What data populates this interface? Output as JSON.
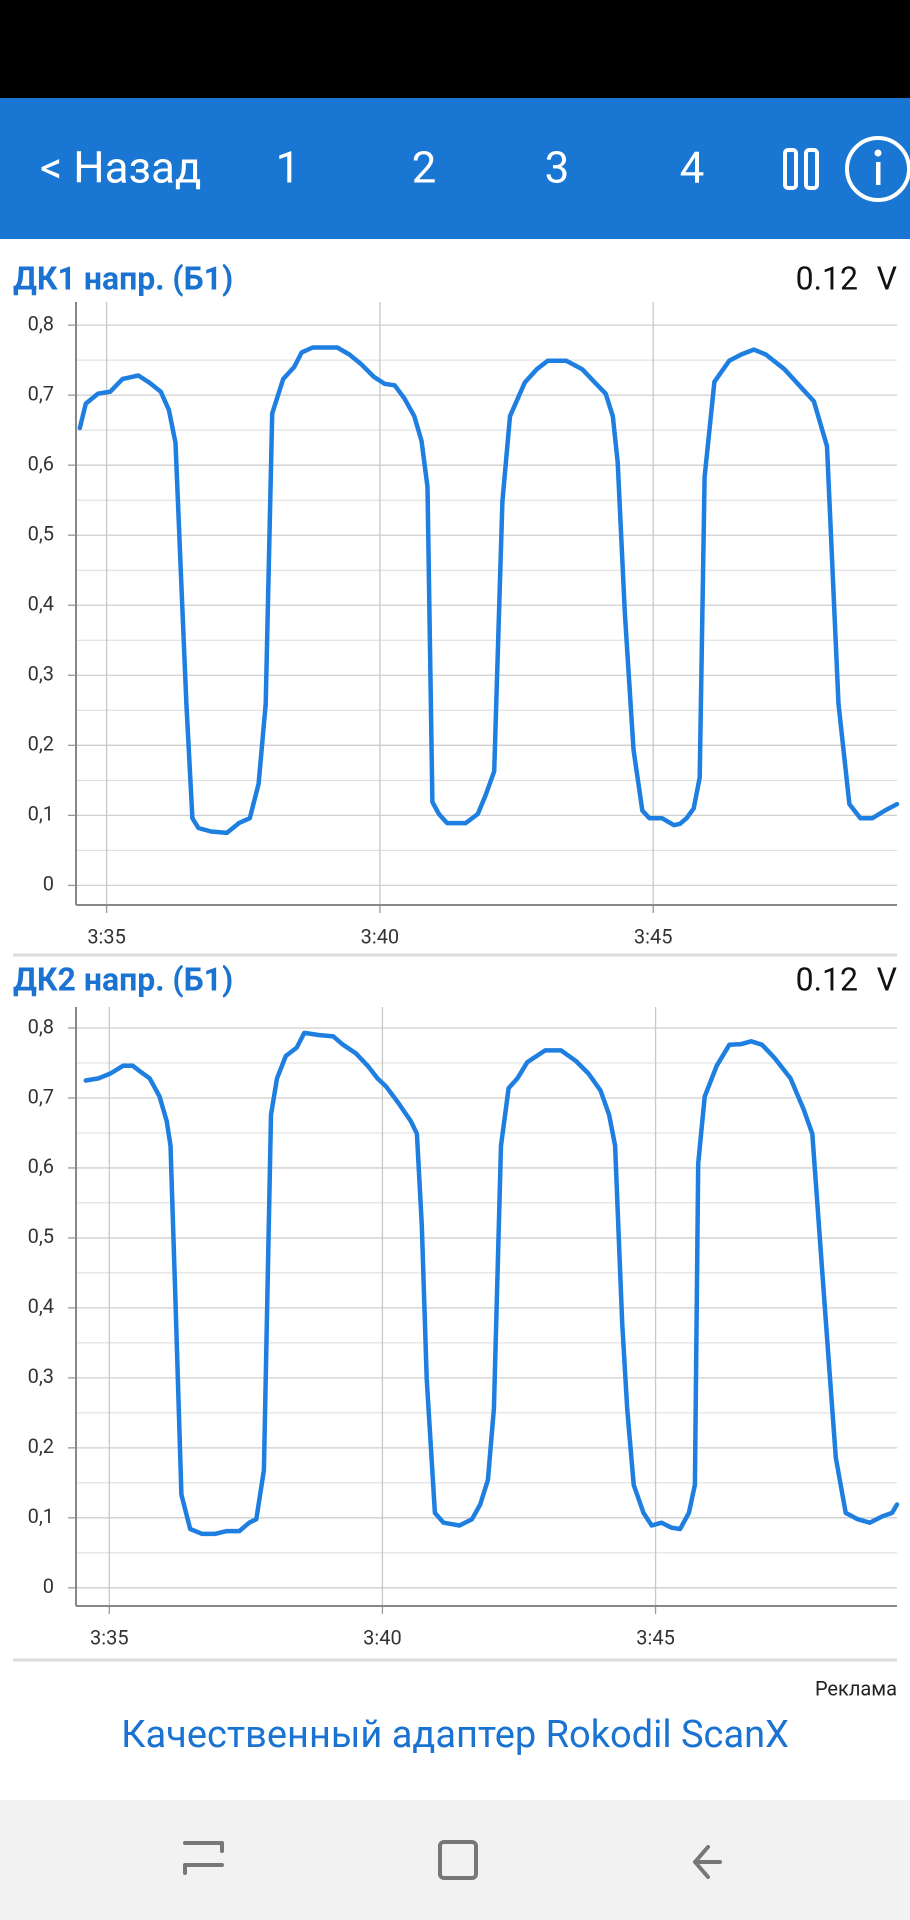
{
  "header": {
    "back": "< Назад",
    "tabs": [
      "1",
      "2",
      "3",
      "4"
    ]
  },
  "chart_data": [
    {
      "type": "line",
      "title": "ДК1 напр. (Б1)",
      "current_value": 0.12,
      "unit": "V",
      "color": "#1e7fe0",
      "grid": true,
      "xlim": [
        214.44,
        229.46
      ],
      "ylim": [
        -0.028,
        0.833
      ],
      "xticks": [
        {
          "value": 215,
          "label": "3:35"
        },
        {
          "value": 220,
          "label": "3:40"
        },
        {
          "value": 225,
          "label": "3:45"
        }
      ],
      "yticks": [
        0,
        {
          "value": 0.1,
          "label": "0,1"
        },
        {
          "value": 0.2,
          "label": "0,2"
        },
        {
          "value": 0.3,
          "label": "0,3"
        },
        {
          "value": 0.4,
          "label": "0,4"
        },
        {
          "value": 0.5,
          "label": "0,5"
        },
        {
          "value": 0.6,
          "label": "0,6"
        },
        {
          "value": 0.7,
          "label": "0,7"
        },
        {
          "value": 0.8,
          "label": "0,8"
        }
      ],
      "x": [
        214.51,
        214.62,
        214.84,
        215.07,
        215.29,
        215.58,
        215.78,
        215.99,
        216.14,
        216.26,
        216.37,
        216.46,
        216.57,
        216.68,
        216.91,
        217.2,
        217.42,
        217.62,
        217.78,
        217.91,
        218.03,
        218.23,
        218.43,
        218.57,
        218.77,
        219.22,
        219.44,
        219.66,
        219.89,
        220.09,
        220.27,
        220.45,
        220.63,
        220.76,
        220.87,
        220.96,
        221.08,
        221.23,
        221.57,
        221.79,
        221.93,
        222.09,
        222.24,
        222.38,
        222.65,
        222.87,
        223.07,
        223.41,
        223.7,
        223.92,
        224.13,
        224.26,
        224.35,
        224.48,
        224.64,
        224.8,
        224.93,
        225.16,
        225.38,
        225.49,
        225.61,
        225.74,
        225.85,
        225.94,
        226.12,
        226.39,
        226.61,
        226.84,
        227.06,
        227.4,
        227.67,
        227.94,
        228.18,
        228.39,
        228.59,
        228.79,
        229.01,
        229.24,
        229.46
      ],
      "values": [
        0.653,
        0.688,
        0.702,
        0.705,
        0.723,
        0.728,
        0.718,
        0.705,
        0.679,
        0.632,
        0.425,
        0.259,
        0.096,
        0.082,
        0.077,
        0.075,
        0.089,
        0.096,
        0.145,
        0.259,
        0.674,
        0.723,
        0.74,
        0.761,
        0.768,
        0.768,
        0.758,
        0.744,
        0.726,
        0.716,
        0.714,
        0.695,
        0.67,
        0.635,
        0.569,
        0.119,
        0.102,
        0.089,
        0.089,
        0.102,
        0.128,
        0.163,
        0.548,
        0.67,
        0.718,
        0.737,
        0.749,
        0.749,
        0.737,
        0.719,
        0.702,
        0.67,
        0.604,
        0.39,
        0.194,
        0.107,
        0.096,
        0.096,
        0.086,
        0.088,
        0.096,
        0.11,
        0.154,
        0.583,
        0.719,
        0.749,
        0.758,
        0.765,
        0.758,
        0.737,
        0.714,
        0.691,
        0.627,
        0.259,
        0.116,
        0.096,
        0.096,
        0.107,
        0.116
      ]
    },
    {
      "type": "line",
      "title": "ДК2 напр. (Б1)",
      "current_value": 0.12,
      "unit": "V",
      "color": "#1e7fe0",
      "grid": true,
      "xlim": [
        214.39,
        229.42
      ],
      "ylim": [
        -0.026,
        0.83
      ],
      "xticks": [
        {
          "value": 215,
          "label": "3:35"
        },
        {
          "value": 220,
          "label": "3:40"
        },
        {
          "value": 225,
          "label": "3:45"
        }
      ],
      "yticks": [
        0,
        {
          "value": 0.1,
          "label": "0,1"
        },
        {
          "value": 0.2,
          "label": "0,2"
        },
        {
          "value": 0.3,
          "label": "0,3"
        },
        {
          "value": 0.4,
          "label": "0,4"
        },
        {
          "value": 0.5,
          "label": "0,5"
        },
        {
          "value": 0.6,
          "label": "0,6"
        },
        {
          "value": 0.7,
          "label": "0,7"
        },
        {
          "value": 0.8,
          "label": "0,8"
        }
      ],
      "x": [
        214.57,
        214.8,
        215.02,
        215.25,
        215.43,
        215.58,
        215.74,
        215.92,
        216.05,
        216.12,
        216.21,
        216.32,
        216.48,
        216.7,
        216.93,
        217.15,
        217.38,
        217.56,
        217.69,
        217.83,
        217.96,
        218.07,
        218.23,
        218.43,
        218.57,
        218.83,
        219.1,
        219.28,
        219.51,
        219.73,
        219.91,
        220.07,
        220.29,
        220.52,
        220.63,
        220.72,
        220.81,
        220.96,
        221.12,
        221.41,
        221.64,
        221.79,
        221.93,
        222.04,
        222.17,
        222.31,
        222.47,
        222.65,
        222.98,
        223.27,
        223.54,
        223.77,
        223.99,
        224.15,
        224.26,
        224.39,
        224.48,
        224.6,
        224.78,
        224.93,
        225.11,
        225.29,
        225.45,
        225.61,
        225.72,
        225.78,
        225.9,
        226.12,
        226.35,
        226.57,
        226.75,
        226.95,
        227.17,
        227.47,
        227.71,
        227.87,
        228.07,
        228.3,
        228.48,
        228.7,
        228.92,
        229.15,
        229.33,
        229.42
      ],
      "values": [
        0.725,
        0.728,
        0.735,
        0.746,
        0.746,
        0.737,
        0.728,
        0.702,
        0.667,
        0.632,
        0.413,
        0.133,
        0.084,
        0.077,
        0.077,
        0.081,
        0.081,
        0.093,
        0.098,
        0.168,
        0.676,
        0.728,
        0.76,
        0.772,
        0.793,
        0.79,
        0.788,
        0.776,
        0.764,
        0.746,
        0.728,
        0.716,
        0.693,
        0.667,
        0.649,
        0.518,
        0.299,
        0.107,
        0.093,
        0.089,
        0.098,
        0.119,
        0.154,
        0.256,
        0.632,
        0.714,
        0.728,
        0.751,
        0.768,
        0.768,
        0.753,
        0.735,
        0.711,
        0.676,
        0.632,
        0.378,
        0.256,
        0.147,
        0.107,
        0.089,
        0.093,
        0.086,
        0.084,
        0.107,
        0.147,
        0.606,
        0.702,
        0.746,
        0.776,
        0.777,
        0.781,
        0.776,
        0.758,
        0.728,
        0.684,
        0.649,
        0.431,
        0.186,
        0.107,
        0.098,
        0.093,
        0.102,
        0.107,
        0.119
      ]
    }
  ],
  "ad": {
    "label": "Реклама",
    "text": "Качественный адаптер Rokodil ScanX"
  }
}
